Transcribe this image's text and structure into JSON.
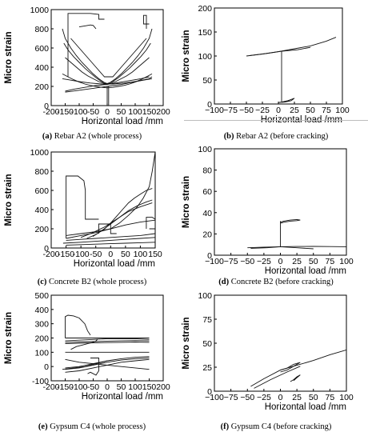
{
  "xlabel": "Horizontal load /mm",
  "ylabel": "Micro strain",
  "chart_data": [
    {
      "id": "a",
      "type": "line",
      "caption_letter": "(a)",
      "caption_text": " Rebar A2 (whole process)",
      "xlabel": "Horizontal load /mm",
      "ylabel": "Micro strain",
      "xlim": [
        -200,
        200
      ],
      "ylim": [
        0,
        1000
      ],
      "xticks": [
        "-200",
        "-150",
        "-100",
        "-50",
        "0",
        "50",
        "100",
        "150",
        "200"
      ],
      "yticks": [
        "0",
        "200",
        "400",
        "600",
        "800",
        "1000"
      ],
      "series": [
        {
          "x": [
            -160,
            -150,
            -130,
            -110,
            -90,
            -70,
            -50,
            -30,
            -10,
            0,
            10,
            30,
            50,
            70,
            90,
            110,
            130,
            150,
            160
          ],
          "y": [
            800,
            700,
            600,
            520,
            450,
            390,
            330,
            280,
            240,
            220,
            240,
            280,
            330,
            390,
            450,
            520,
            600,
            700,
            800
          ]
        },
        {
          "x": [
            -155,
            -140,
            -120,
            -100,
            -80,
            -60,
            -40,
            -20,
            0,
            20,
            40,
            60,
            80,
            100,
            120,
            140,
            155
          ],
          "y": [
            650,
            580,
            510,
            450,
            390,
            340,
            290,
            250,
            230,
            250,
            290,
            340,
            390,
            450,
            510,
            580,
            650
          ]
        },
        {
          "x": [
            -150,
            -130,
            -110,
            -90,
            -70,
            -50,
            -30,
            -10,
            10,
            30,
            50,
            70,
            90,
            110,
            130,
            150
          ],
          "y": [
            500,
            450,
            400,
            350,
            310,
            280,
            250,
            230,
            230,
            250,
            280,
            310,
            350,
            400,
            450,
            500
          ]
        },
        {
          "x": [
            -160,
            -140,
            -120,
            -100,
            -80,
            -60,
            -40,
            -20,
            0,
            20,
            40,
            60,
            80,
            100,
            120,
            140,
            160
          ],
          "y": [
            330,
            300,
            270,
            245,
            225,
            210,
            200,
            190,
            185,
            190,
            200,
            210,
            225,
            245,
            270,
            300,
            330
          ]
        },
        {
          "x": [
            -150,
            -100,
            -50,
            0,
            50,
            100,
            150,
            160
          ],
          "y": [
            140,
            160,
            180,
            200,
            220,
            250,
            280,
            300
          ]
        },
        {
          "x": [
            -150,
            -120,
            -80,
            -40,
            0,
            40,
            80,
            120,
            150
          ],
          "y": [
            150,
            170,
            190,
            210,
            220,
            240,
            260,
            280,
            300
          ]
        },
        {
          "x": [
            -140,
            -140,
            -60,
            -30,
            -30,
            -10
          ],
          "y": [
            300,
            960,
            960,
            950,
            900,
            900
          ]
        },
        {
          "x": [
            -100,
            -80,
            -60,
            -50,
            -40
          ],
          "y": [
            820,
            830,
            840,
            835,
            800
          ]
        },
        {
          "x": [
            140,
            140,
            130,
            130,
            150
          ],
          "y": [
            800,
            940,
            940,
            850,
            850
          ]
        },
        {
          "x": [
            0,
            0,
            5,
            5
          ],
          "y": [
            0,
            200,
            200,
            0
          ]
        },
        {
          "x": [
            -160,
            -140,
            -100,
            -60,
            -20,
            20,
            60,
            100,
            140,
            160
          ],
          "y": [
            280,
            270,
            250,
            235,
            225,
            225,
            235,
            250,
            270,
            280
          ]
        },
        {
          "x": [
            -130,
            -100,
            -70,
            -40,
            -10,
            20,
            50,
            80,
            110,
            140
          ],
          "y": [
            700,
            600,
            500,
            400,
            300,
            300,
            400,
            500,
            600,
            700
          ]
        }
      ]
    },
    {
      "id": "b",
      "type": "line",
      "caption_letter": "(b)",
      "caption_text": " Rebar A2 (before cracking)",
      "xlabel": "Horizontal load /mm",
      "ylabel": "Micro strain",
      "xlim": [
        -100,
        100
      ],
      "ylim": [
        0,
        200
      ],
      "xticks": [
        "−100",
        "−75",
        "−50",
        "−25",
        "0",
        "25",
        "50",
        "75",
        "100"
      ],
      "yticks": [
        "0",
        "50",
        "100",
        "150",
        "200"
      ],
      "series": [
        {
          "x": [
            -50,
            -25,
            0,
            25,
            50,
            75,
            90
          ],
          "y": [
            100,
            104,
            109,
            115,
            121,
            131,
            139
          ]
        },
        {
          "x": [
            -45,
            -20,
            5,
            30,
            50
          ],
          "y": [
            101,
            105,
            110,
            113,
            118
          ]
        },
        {
          "x": [
            5,
            5
          ],
          "y": [
            5,
            110
          ]
        },
        {
          "x": [
            0,
            10,
            20,
            25,
            15,
            5,
            0
          ],
          "y": [
            3,
            4,
            7,
            12,
            7,
            4,
            3
          ]
        }
      ]
    },
    {
      "id": "c",
      "type": "line",
      "caption_letter": "(c)",
      "caption_text": " Concrete B2 (whole process)",
      "xlabel": "Horizontal load /mm",
      "ylabel": "Micro strain",
      "xlim": [
        -200,
        150
      ],
      "ylim": [
        0,
        1000
      ],
      "xticks": [
        "-200",
        "-150",
        "-100",
        "-50",
        "0",
        "50",
        "100",
        "150"
      ],
      "yticks": [
        "0",
        "200",
        "400",
        "600",
        "800",
        "1000"
      ],
      "series": [
        {
          "x": [
            -150,
            -150,
            -110,
            -90,
            -85,
            -85,
            -60,
            -40
          ],
          "y": [
            100,
            750,
            750,
            700,
            600,
            300,
            300,
            300
          ]
        },
        {
          "x": [
            -150,
            -100,
            -50,
            0,
            50,
            100,
            150
          ],
          "y": [
            80,
            90,
            100,
            110,
            120,
            130,
            150
          ]
        },
        {
          "x": [
            -160,
            -100,
            -50,
            0,
            50,
            100,
            150
          ],
          "y": [
            50,
            60,
            70,
            80,
            90,
            100,
            110
          ]
        },
        {
          "x": [
            -150,
            -100,
            -50,
            0,
            50,
            100,
            150
          ],
          "y": [
            30,
            35,
            40,
            45,
            50,
            55,
            60
          ]
        },
        {
          "x": [
            -150,
            -100,
            -50,
            0,
            30,
            60,
            90,
            110,
            130,
            140,
            150
          ],
          "y": [
            100,
            130,
            160,
            200,
            260,
            340,
            430,
            520,
            640,
            800,
            1000
          ]
        },
        {
          "x": [
            -80,
            -50,
            -20,
            0,
            20,
            40,
            60,
            80,
            100,
            120,
            140
          ],
          "y": [
            100,
            140,
            200,
            260,
            330,
            400,
            470,
            520,
            560,
            600,
            620
          ]
        },
        {
          "x": [
            -60,
            -30,
            0,
            30,
            60,
            90,
            120,
            140
          ],
          "y": [
            120,
            180,
            250,
            320,
            390,
            440,
            480,
            500
          ]
        },
        {
          "x": [
            -100,
            -60,
            -20,
            20,
            60,
            100,
            140
          ],
          "y": [
            110,
            160,
            220,
            300,
            380,
            430,
            470
          ]
        },
        {
          "x": [
            -40,
            -40,
            0,
            0,
            20
          ],
          "y": [
            150,
            250,
            250,
            150,
            150
          ]
        },
        {
          "x": [
            120,
            120,
            140,
            150,
            150,
            130
          ],
          "y": [
            200,
            320,
            320,
            300,
            200,
            200
          ]
        },
        {
          "x": [
            -150,
            -100,
            -50,
            0,
            50,
            100,
            150
          ],
          "y": [
            130,
            150,
            170,
            200,
            240,
            270,
            290
          ]
        }
      ]
    },
    {
      "id": "d",
      "type": "line",
      "caption_letter": "(d)",
      "caption_text": " Concrete B2 (before cracking)",
      "xlabel": "Horizontal load /mm",
      "ylabel": "Micro strain",
      "xlim": [
        -100,
        100
      ],
      "ylim": [
        0,
        100
      ],
      "xticks": [
        "−100",
        "−75",
        "−50",
        "−25",
        "0",
        "25",
        "50",
        "75",
        "100"
      ],
      "yticks": [
        "0",
        "20",
        "40",
        "60",
        "80",
        "100"
      ],
      "series": [
        {
          "x": [
            -50,
            -25,
            0,
            25,
            50,
            75,
            100
          ],
          "y": [
            7,
            7.5,
            8,
            8.2,
            8.3,
            8.1,
            8
          ]
        },
        {
          "x": [
            -45,
            -20,
            0,
            25,
            50
          ],
          "y": [
            6.5,
            7,
            8,
            7,
            6
          ]
        },
        {
          "x": [
            0,
            0
          ],
          "y": [
            8,
            32
          ]
        },
        {
          "x": [
            0,
            5,
            15,
            25,
            30,
            25,
            15,
            5,
            0
          ],
          "y": [
            31,
            32,
            33,
            33.5,
            33,
            32.5,
            32,
            31,
            30
          ]
        }
      ]
    },
    {
      "id": "e",
      "type": "line",
      "caption_letter": "(e)",
      "caption_text": " Gypsum C4 (whole process)",
      "xlabel": "Horizontal load /mm",
      "ylabel": "Micro strain",
      "xlim": [
        -200,
        200
      ],
      "ylim": [
        -100,
        500
      ],
      "xticks": [
        "-200",
        "-150",
        "-100",
        "-50",
        "0",
        "50",
        "100",
        "150",
        "200"
      ],
      "yticks": [
        "-100",
        "0",
        "100",
        "200",
        "300",
        "400",
        "500"
      ],
      "series": [
        {
          "x": [
            -150,
            -150,
            -140,
            -120,
            -100,
            -80,
            -70,
            -60
          ],
          "y": [
            200,
            350,
            360,
            355,
            340,
            300,
            250,
            220
          ]
        },
        {
          "x": [
            -150,
            -100,
            -50,
            0,
            50,
            100,
            150
          ],
          "y": [
            200,
            200,
            200,
            200,
            200,
            200,
            200
          ]
        },
        {
          "x": [
            -150,
            -100,
            -50,
            0,
            50,
            100,
            150
          ],
          "y": [
            180,
            185,
            190,
            195,
            195,
            195,
            190
          ]
        },
        {
          "x": [
            -150,
            -100,
            -50,
            0,
            50,
            100,
            150
          ],
          "y": [
            170,
            172,
            175,
            178,
            180,
            182,
            180
          ]
        },
        {
          "x": [
            -150,
            -100,
            -50,
            0,
            50,
            100,
            150
          ],
          "y": [
            160,
            163,
            166,
            168,
            170,
            172,
            170
          ]
        },
        {
          "x": [
            -150,
            -100,
            -50,
            0,
            50,
            100,
            150
          ],
          "y": [
            50,
            30,
            20,
            10,
            0,
            -10,
            -20
          ]
        },
        {
          "x": [
            -150,
            -100,
            -50,
            0,
            50,
            100,
            150
          ],
          "y": [
            -10,
            0,
            20,
            40,
            55,
            65,
            70
          ]
        },
        {
          "x": [
            -150,
            -100,
            -50,
            0,
            50,
            100,
            150
          ],
          "y": [
            -20,
            -10,
            10,
            30,
            45,
            55,
            60
          ]
        },
        {
          "x": [
            -150,
            -100,
            -50,
            0,
            50,
            100,
            150
          ],
          "y": [
            -40,
            -30,
            -10,
            10,
            30,
            40,
            50
          ]
        },
        {
          "x": [
            -150,
            -100,
            -50,
            0,
            50,
            100,
            150
          ],
          "y": [
            100,
            100,
            100,
            100,
            100,
            100,
            100
          ]
        },
        {
          "x": [
            -70,
            -60,
            -40,
            -30,
            -30,
            -60
          ],
          "y": [
            -50,
            -40,
            -60,
            -30,
            60,
            60
          ]
        },
        {
          "x": [
            -130,
            -110,
            -90,
            -70,
            -50,
            -40,
            -35
          ],
          "y": [
            120,
            140,
            150,
            160,
            170,
            180,
            190
          ]
        },
        {
          "x": [
            -160,
            -120,
            -80,
            -40,
            0
          ],
          "y": [
            -20,
            -10,
            0,
            20,
            40
          ]
        }
      ]
    },
    {
      "id": "f",
      "type": "line",
      "caption_letter": "(f)",
      "caption_text": " Gypsum C4 (before cracking)",
      "xlabel": "Horizontal load /mm",
      "ylabel": "Micro strain",
      "xlim": [
        -100,
        100
      ],
      "ylim": [
        0,
        100
      ],
      "xticks": [
        "−100",
        "−75",
        "−50",
        "−25",
        "0",
        "25",
        "50",
        "75",
        "100"
      ],
      "yticks": [
        "0",
        "25",
        "50",
        "75",
        "100"
      ],
      "series": [
        {
          "x": [
            -45,
            -25,
            0,
            25,
            50,
            75,
            100
          ],
          "y": [
            5,
            13,
            22,
            27,
            32,
            38,
            43
          ]
        },
        {
          "x": [
            -40,
            -15,
            10,
            30
          ],
          "y": [
            3,
            12,
            20,
            26
          ]
        },
        {
          "x": [
            0,
            10,
            20,
            30,
            20,
            10,
            0
          ],
          "y": [
            20,
            22,
            26,
            30,
            28,
            24,
            22
          ]
        },
        {
          "x": [
            15,
            20,
            25,
            30,
            25,
            20
          ],
          "y": [
            10,
            12,
            15,
            17,
            14,
            11
          ]
        }
      ]
    }
  ]
}
